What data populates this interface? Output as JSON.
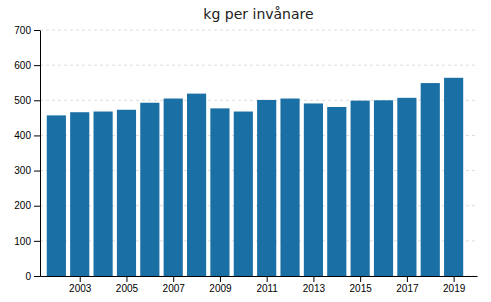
{
  "chart_data": {
    "type": "bar",
    "title": "kg per invånare",
    "x": [
      2002,
      2003,
      2004,
      2005,
      2006,
      2007,
      2008,
      2009,
      2010,
      2011,
      2012,
      2013,
      2014,
      2015,
      2016,
      2017,
      2018,
      2019
    ],
    "values": [
      457,
      466,
      468,
      473,
      493,
      505,
      519,
      477,
      468,
      501,
      505,
      491,
      481,
      499,
      500,
      507,
      549,
      564
    ],
    "color": "#1a6fa4",
    "xlim": [
      2001.3,
      2020.0
    ],
    "xticks": [
      2003,
      2005,
      2007,
      2009,
      2011,
      2013,
      2015,
      2017,
      2019
    ],
    "ylim": [
      0,
      700
    ],
    "yticks": [
      0,
      100,
      200,
      300,
      400,
      500,
      600,
      700
    ],
    "grid": true
  }
}
